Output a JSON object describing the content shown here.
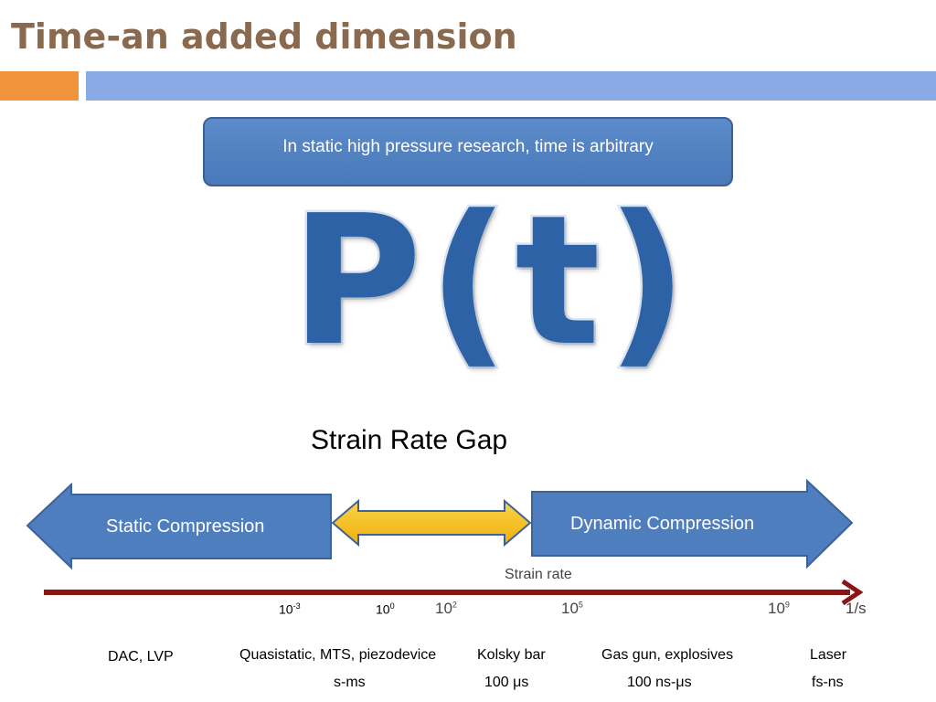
{
  "slide": {
    "title": "Time-an added dimension",
    "callout": "In static high pressure research, time is arbitrary",
    "big_formula": "P(t)",
    "gap_label": "Strain Rate Gap"
  },
  "arrows": {
    "static": "Static Compression",
    "dynamic": "Dynamic Compression"
  },
  "axis": {
    "title": "Strain rate",
    "ticks_small": [
      {
        "base": "10",
        "exp": "-3"
      },
      {
        "base": "10",
        "exp": "0"
      }
    ],
    "ticks_large": [
      {
        "base": "10",
        "exp": "2"
      },
      {
        "base": "10",
        "exp": "5"
      },
      {
        "base": "10",
        "exp": "9"
      }
    ],
    "unit": "1/s"
  },
  "methods": [
    {
      "name": "DAC, LVP",
      "time": ""
    },
    {
      "name": "Quasistatic, MTS, piezodevice",
      "time": "s-ms"
    },
    {
      "name": "Kolsky bar",
      "time": "100 μs"
    },
    {
      "name": "Gas gun, explosives",
      "time": "100 ns-μs"
    },
    {
      "name": "Laser",
      "time": "fs-ns"
    }
  ],
  "colors": {
    "title": "#8a6a4f",
    "orange_bar": "#f0933a",
    "blue_bar": "#8aaae6",
    "shape_blue": "#4f7ebf",
    "yellow_arrow": "#f5c018",
    "axis_red": "#8b1414"
  }
}
